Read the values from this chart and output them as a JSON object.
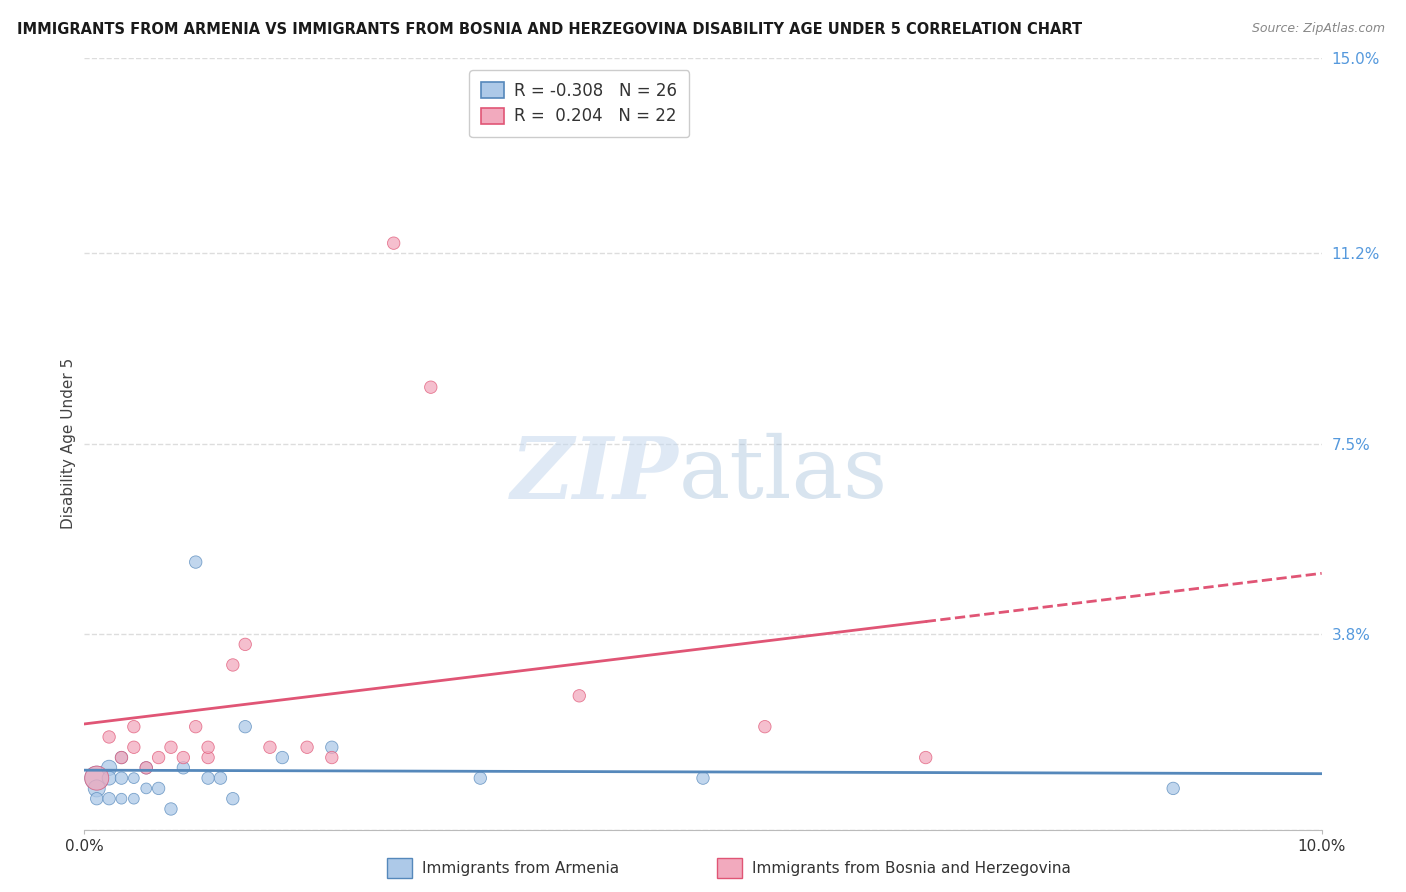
{
  "title": "IMMIGRANTS FROM ARMENIA VS IMMIGRANTS FROM BOSNIA AND HERZEGOVINA DISABILITY AGE UNDER 5 CORRELATION CHART",
  "source": "Source: ZipAtlas.com",
  "ylabel": "Disability Age Under 5",
  "xlim": [
    0.0,
    0.1
  ],
  "ylim": [
    0.0,
    0.15
  ],
  "ytick_labels_right": [
    "",
    "3.8%",
    "7.5%",
    "11.2%",
    "15.0%"
  ],
  "ytick_vals_right": [
    0.0,
    0.038,
    0.075,
    0.112,
    0.15
  ],
  "blue_color": "#adc9e8",
  "pink_color": "#f2aabe",
  "blue_line_color": "#5588bb",
  "pink_line_color": "#e05575",
  "armenia_x": [
    0.001,
    0.001,
    0.001,
    0.002,
    0.002,
    0.002,
    0.003,
    0.003,
    0.003,
    0.004,
    0.004,
    0.005,
    0.005,
    0.006,
    0.007,
    0.008,
    0.009,
    0.01,
    0.011,
    0.012,
    0.013,
    0.016,
    0.02,
    0.032,
    0.05,
    0.088
  ],
  "armenia_y": [
    0.01,
    0.008,
    0.006,
    0.012,
    0.01,
    0.006,
    0.014,
    0.01,
    0.006,
    0.01,
    0.006,
    0.012,
    0.008,
    0.008,
    0.004,
    0.012,
    0.052,
    0.01,
    0.01,
    0.006,
    0.02,
    0.014,
    0.016,
    0.01,
    0.01,
    0.008
  ],
  "armenia_size": [
    300,
    150,
    80,
    120,
    100,
    80,
    80,
    80,
    60,
    60,
    60,
    80,
    60,
    80,
    80,
    80,
    80,
    80,
    80,
    80,
    80,
    80,
    80,
    80,
    80,
    80
  ],
  "bosnia_x": [
    0.001,
    0.002,
    0.003,
    0.004,
    0.004,
    0.005,
    0.006,
    0.007,
    0.008,
    0.009,
    0.01,
    0.01,
    0.012,
    0.013,
    0.015,
    0.018,
    0.02,
    0.025,
    0.028,
    0.04,
    0.055,
    0.068
  ],
  "bosnia_y": [
    0.01,
    0.018,
    0.014,
    0.02,
    0.016,
    0.012,
    0.014,
    0.016,
    0.014,
    0.02,
    0.014,
    0.016,
    0.032,
    0.036,
    0.016,
    0.016,
    0.014,
    0.114,
    0.086,
    0.026,
    0.02,
    0.014
  ],
  "bosnia_size": [
    300,
    80,
    80,
    80,
    80,
    80,
    80,
    80,
    80,
    80,
    80,
    80,
    80,
    80,
    80,
    80,
    80,
    80,
    80,
    80,
    80,
    80
  ],
  "grid_color": "#dddddd",
  "background_color": "#ffffff",
  "legend_label1": "R = -0.308   N = 26",
  "legend_label2": "R =  0.204   N = 22",
  "bottom_label1": "Immigrants from Armenia",
  "bottom_label2": "Immigrants from Bosnia and Herzegovina"
}
